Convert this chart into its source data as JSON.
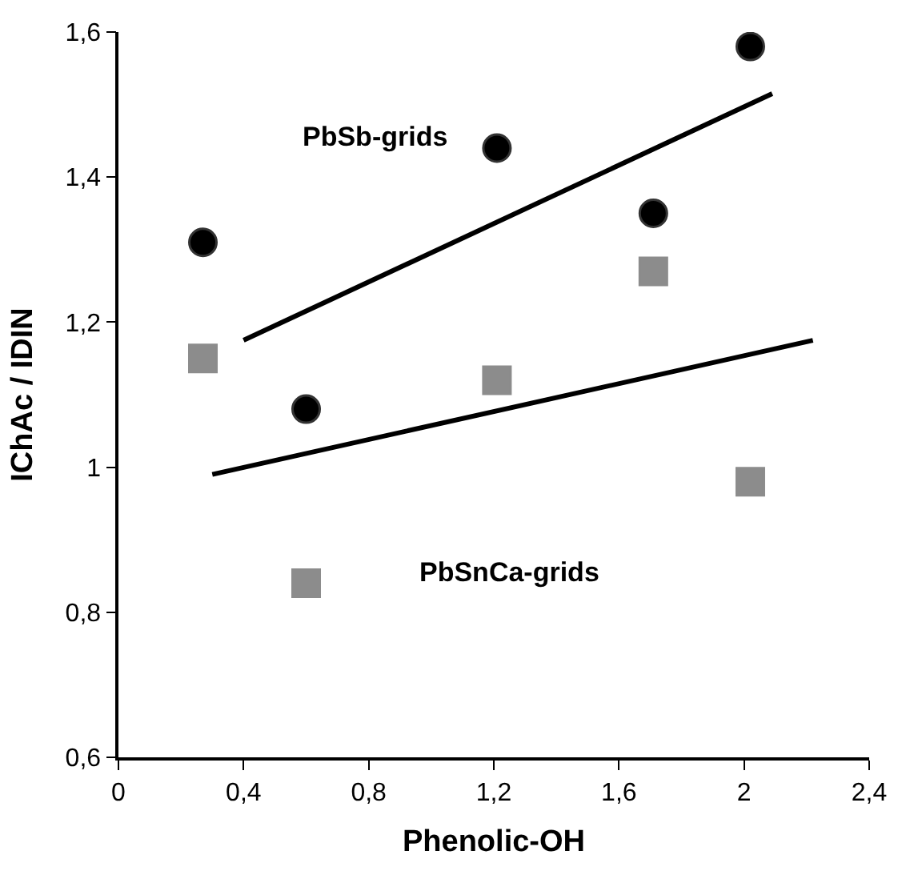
{
  "chart_data": {
    "type": "scatter",
    "xlabel": "Phenolic-OH",
    "ylabel": "IChAc / IDIN",
    "x": [
      0.27,
      0.6,
      1.21,
      1.71,
      2.02
    ],
    "series": [
      {
        "marker": "circle",
        "color": "#000000",
        "values": [
          1.31,
          1.08,
          1.44,
          1.35,
          1.58
        ]
      },
      {
        "marker": "square",
        "color": "#8c8c8c",
        "values": [
          1.15,
          0.84,
          1.12,
          1.27,
          0.98
        ]
      },
      {
        "type": "line",
        "marker": "none",
        "color": "#000000",
        "x": [
          0.4,
          2.09
        ],
        "values": [
          1.175,
          1.515
        ]
      },
      {
        "type": "line",
        "marker": "none",
        "color": "#000000",
        "x": [
          0.3,
          2.22
        ],
        "values": [
          0.99,
          1.175
        ]
      }
    ],
    "annotations": [
      "PbSb-grids",
      "PbSnCa-grids"
    ],
    "xlim": [
      0,
      2.4
    ],
    "xticks": [
      0,
      {
        "value": 0.4,
        "label": "0,4"
      },
      {
        "value": 0.8,
        "label": "0,8"
      },
      {
        "value": 1.2,
        "label": "1,2"
      },
      {
        "value": 1.6,
        "label": "1,6"
      },
      2,
      {
        "value": 2.4,
        "label": "2,4"
      }
    ],
    "ylim": [
      0.6,
      1.6
    ],
    "yticks": [
      {
        "value": 0.6,
        "label": "0,6"
      },
      {
        "value": 0.8,
        "label": "0,8"
      },
      1,
      {
        "value": 1.2,
        "label": "1,2"
      },
      {
        "value": 1.4,
        "label": "1,4"
      },
      {
        "value": 1.6,
        "label": "1,6"
      }
    ]
  }
}
